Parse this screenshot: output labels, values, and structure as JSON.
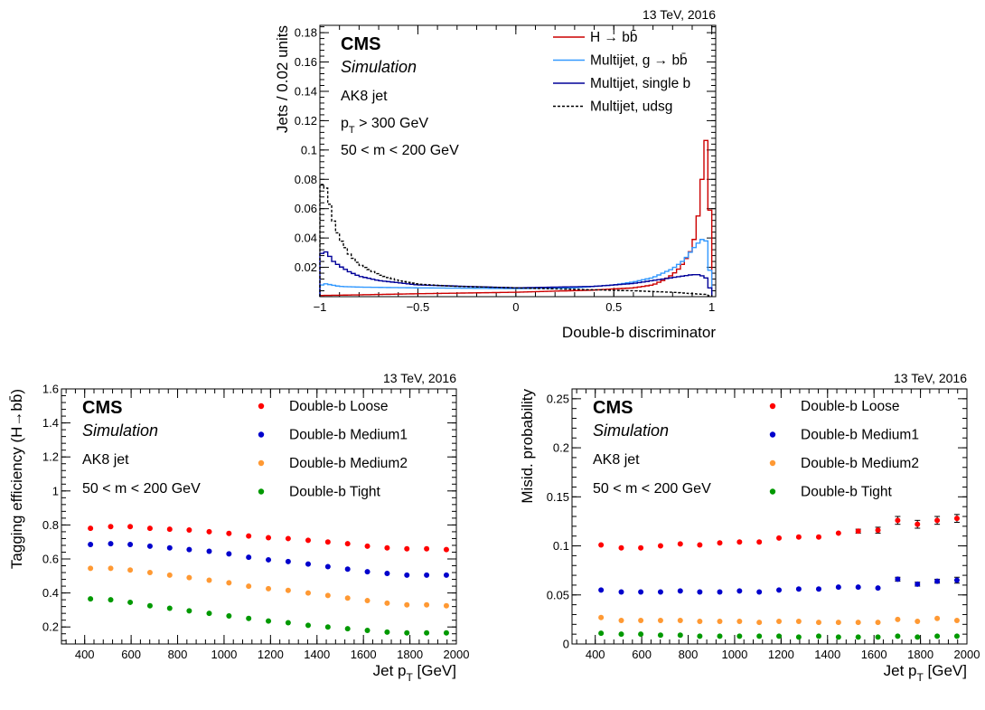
{
  "colors": {
    "red": "#cc0000",
    "lightblue": "#3399ff",
    "navy": "#000099",
    "black": "#000000",
    "marker_red": "#ff0000",
    "marker_blue": "#0000cc",
    "marker_orange": "#ff9933",
    "marker_green": "#009900"
  },
  "chart_data": [
    {
      "type": "line",
      "energy_label": "13 TeV, 2016",
      "experiment": "CMS",
      "simulation": "Simulation",
      "info_lines": [
        "AK8 jet",
        "p_T > 300 GeV",
        "50 < m < 200 GeV"
      ],
      "xlabel": "Double-b discriminator",
      "ylabel": "Jets / 0.02 units",
      "xlim": [
        -1,
        1.02
      ],
      "ylim": [
        0,
        0.185
      ],
      "xticks": [
        "−1",
        "−0.5",
        "0",
        "0.5",
        "1"
      ],
      "xtick_values": [
        -1,
        -0.5,
        0,
        0.5,
        1
      ],
      "yticks": [
        "0.02",
        "0.04",
        "0.06",
        "0.08",
        "0.1",
        "0.12",
        "0.14",
        "0.16",
        "0.18"
      ],
      "ytick_values": [
        0.02,
        0.04,
        0.06,
        0.08,
        0.1,
        0.12,
        0.14,
        0.16,
        0.18
      ],
      "legend_placement": "top-right",
      "bin_width": 0.02,
      "series": [
        {
          "name": "H → bb̄",
          "color": "red",
          "style": "solid",
          "anchors": [
            [
              -1.0,
              0.0008
            ],
            [
              -0.9,
              0.001
            ],
            [
              -0.5,
              0.002
            ],
            [
              0.0,
              0.003
            ],
            [
              0.4,
              0.0045
            ],
            [
              0.6,
              0.006
            ],
            [
              0.7,
              0.008
            ],
            [
              0.75,
              0.011
            ],
            [
              0.8,
              0.015
            ],
            [
              0.84,
              0.02
            ],
            [
              0.87,
              0.026
            ],
            [
              0.9,
              0.033
            ],
            [
              0.92,
              0.045
            ],
            [
              0.94,
              0.065
            ],
            [
              0.96,
              0.095
            ],
            [
              0.98,
              0.118
            ],
            [
              1.0,
              0.0
            ]
          ]
        },
        {
          "name": "Multijet, g → bb̄",
          "color": "lightblue",
          "style": "solid",
          "anchors": [
            [
              -1.0,
              0.007
            ],
            [
              -0.98,
              0.009
            ],
            [
              -0.94,
              0.008
            ],
            [
              -0.9,
              0.007
            ],
            [
              -0.8,
              0.0065
            ],
            [
              -0.5,
              0.006
            ],
            [
              0.0,
              0.0055
            ],
            [
              0.3,
              0.006
            ],
            [
              0.5,
              0.008
            ],
            [
              0.6,
              0.01
            ],
            [
              0.7,
              0.013
            ],
            [
              0.8,
              0.019
            ],
            [
              0.86,
              0.025
            ],
            [
              0.9,
              0.032
            ],
            [
              0.94,
              0.038
            ],
            [
              0.96,
              0.04
            ],
            [
              0.98,
              0.036
            ],
            [
              1.0,
              0.0
            ]
          ]
        },
        {
          "name": "Multijet, single b",
          "color": "navy",
          "style": "solid",
          "anchors": [
            [
              -1.0,
              0.028
            ],
            [
              -0.98,
              0.031
            ],
            [
              -0.96,
              0.03
            ],
            [
              -0.94,
              0.025
            ],
            [
              -0.9,
              0.021
            ],
            [
              -0.85,
              0.017
            ],
            [
              -0.8,
              0.014
            ],
            [
              -0.7,
              0.011
            ],
            [
              -0.5,
              0.008
            ],
            [
              0.0,
              0.006
            ],
            [
              0.4,
              0.007
            ],
            [
              0.6,
              0.009
            ],
            [
              0.7,
              0.011
            ],
            [
              0.8,
              0.013
            ],
            [
              0.9,
              0.015
            ],
            [
              0.94,
              0.015
            ],
            [
              0.98,
              0.012
            ],
            [
              1.0,
              0.0
            ]
          ]
        },
        {
          "name": "Multijet, udsg",
          "color": "black",
          "style": "dashed",
          "anchors": [
            [
              -1.0,
              0.075
            ],
            [
              -0.98,
              0.078
            ],
            [
              -0.96,
              0.07
            ],
            [
              -0.94,
              0.056
            ],
            [
              -0.92,
              0.047
            ],
            [
              -0.9,
              0.04
            ],
            [
              -0.85,
              0.029
            ],
            [
              -0.8,
              0.022
            ],
            [
              -0.7,
              0.015
            ],
            [
              -0.6,
              0.011
            ],
            [
              -0.5,
              0.0085
            ],
            [
              -0.3,
              0.007
            ],
            [
              0.0,
              0.006
            ],
            [
              0.3,
              0.005
            ],
            [
              0.6,
              0.004
            ],
            [
              0.8,
              0.003
            ],
            [
              0.9,
              0.002
            ],
            [
              0.98,
              0.0015
            ],
            [
              1.0,
              0.0
            ]
          ]
        }
      ]
    },
    {
      "type": "scatter",
      "energy_label": "13 TeV, 2016",
      "experiment": "CMS",
      "simulation": "Simulation",
      "info_lines": [
        "AK8 jet",
        "50 < m < 200 GeV"
      ],
      "xlabel": "Jet p_T [GeV]",
      "ylabel": "Tagging efficiency (H→bb̄)",
      "xlim": [
        300,
        2000
      ],
      "ylim": [
        0.1,
        1.6
      ],
      "xticks": [
        "400",
        "600",
        "800",
        "1000",
        "1200",
        "1400",
        "1600",
        "1800",
        "2000"
      ],
      "xtick_values": [
        400,
        600,
        800,
        1000,
        1200,
        1400,
        1600,
        1800,
        2000
      ],
      "yticks": [
        "0.2",
        "0.4",
        "0.6",
        "0.8",
        "1",
        "1.2",
        "1.4",
        "1.6"
      ],
      "ytick_values": [
        0.2,
        0.4,
        0.6,
        0.8,
        1.0,
        1.2,
        1.4,
        1.6
      ],
      "legend_placement": "top-right",
      "x": [
        425,
        512,
        596,
        681,
        766,
        850,
        936,
        1021,
        1106,
        1191,
        1276,
        1362,
        1447,
        1532,
        1617,
        1702,
        1787,
        1872,
        1957
      ],
      "series": [
        {
          "name": "Double-b Loose",
          "color": "marker_red",
          "values": [
            0.78,
            0.79,
            0.79,
            0.78,
            0.775,
            0.77,
            0.76,
            0.75,
            0.735,
            0.725,
            0.72,
            0.71,
            0.7,
            0.69,
            0.675,
            0.665,
            0.66,
            0.66,
            0.655
          ]
        },
        {
          "name": "Double-b Medium1",
          "color": "marker_blue",
          "values": [
            0.685,
            0.69,
            0.685,
            0.675,
            0.665,
            0.655,
            0.645,
            0.63,
            0.61,
            0.595,
            0.585,
            0.57,
            0.555,
            0.54,
            0.525,
            0.515,
            0.505,
            0.505,
            0.505
          ]
        },
        {
          "name": "Double-b Medium2",
          "color": "marker_orange",
          "values": [
            0.545,
            0.545,
            0.535,
            0.52,
            0.505,
            0.49,
            0.475,
            0.46,
            0.44,
            0.425,
            0.415,
            0.4,
            0.385,
            0.37,
            0.355,
            0.34,
            0.33,
            0.33,
            0.325
          ]
        },
        {
          "name": "Double-b Tight",
          "color": "marker_green",
          "values": [
            0.365,
            0.36,
            0.345,
            0.325,
            0.31,
            0.295,
            0.28,
            0.265,
            0.25,
            0.235,
            0.225,
            0.21,
            0.2,
            0.19,
            0.18,
            0.17,
            0.165,
            0.165,
            0.165
          ]
        }
      ]
    },
    {
      "type": "scatter",
      "energy_label": "13 TeV, 2016",
      "experiment": "CMS",
      "simulation": "Simulation",
      "info_lines": [
        "AK8 jet",
        "50 < m < 200 GeV"
      ],
      "xlabel": "Jet p_T [GeV]",
      "ylabel": "Misid. probability",
      "xlim": [
        300,
        2000
      ],
      "ylim": [
        0,
        0.26
      ],
      "xticks": [
        "400",
        "600",
        "800",
        "1000",
        "1200",
        "1400",
        "1600",
        "1800",
        "2000"
      ],
      "xtick_values": [
        400,
        600,
        800,
        1000,
        1200,
        1400,
        1600,
        1800,
        2000
      ],
      "yticks": [
        "0",
        "0.05",
        "0.1",
        "0.15",
        "0.2",
        "0.25"
      ],
      "ytick_values": [
        0,
        0.05,
        0.1,
        0.15,
        0.2,
        0.25
      ],
      "legend_placement": "top-right",
      "x": [
        425,
        512,
        596,
        681,
        766,
        850,
        936,
        1021,
        1106,
        1191,
        1276,
        1362,
        1447,
        1532,
        1617,
        1702,
        1787,
        1872,
        1957
      ],
      "series": [
        {
          "name": "Double-b Loose",
          "color": "marker_red",
          "values": [
            0.101,
            0.098,
            0.098,
            0.1,
            0.102,
            0.101,
            0.103,
            0.104,
            0.104,
            0.108,
            0.109,
            0.109,
            0.113,
            0.115,
            0.116,
            0.126,
            0.122,
            0.126,
            0.128
          ],
          "errors": [
            0.001,
            0.001,
            0.001,
            0.001,
            0.001,
            0.001,
            0.001,
            0.001,
            0.001,
            0.001,
            0.001,
            0.001,
            0.0015,
            0.002,
            0.003,
            0.004,
            0.004,
            0.004,
            0.004
          ]
        },
        {
          "name": "Double-b Medium1",
          "color": "marker_blue",
          "values": [
            0.055,
            0.053,
            0.053,
            0.053,
            0.054,
            0.053,
            0.053,
            0.054,
            0.053,
            0.055,
            0.056,
            0.056,
            0.058,
            0.058,
            0.057,
            0.066,
            0.061,
            0.064,
            0.065
          ],
          "errors": [
            0.001,
            0.001,
            0.001,
            0.001,
            0.001,
            0.001,
            0.001,
            0.001,
            0.001,
            0.001,
            0.001,
            0.001,
            0.001,
            0.001,
            0.0015,
            0.002,
            0.002,
            0.002,
            0.003
          ]
        },
        {
          "name": "Double-b Medium2",
          "color": "marker_orange",
          "values": [
            0.027,
            0.024,
            0.024,
            0.024,
            0.024,
            0.023,
            0.023,
            0.023,
            0.022,
            0.023,
            0.023,
            0.022,
            0.022,
            0.022,
            0.022,
            0.025,
            0.023,
            0.026,
            0.024
          ],
          "errors": [
            0,
            0,
            0,
            0,
            0,
            0,
            0,
            0,
            0,
            0,
            0,
            0,
            0,
            0,
            0,
            0,
            0,
            0,
            0
          ]
        },
        {
          "name": "Double-b Tight",
          "color": "marker_green",
          "values": [
            0.011,
            0.01,
            0.01,
            0.009,
            0.009,
            0.008,
            0.008,
            0.008,
            0.008,
            0.008,
            0.007,
            0.008,
            0.007,
            0.007,
            0.007,
            0.008,
            0.007,
            0.008,
            0.008
          ],
          "errors": [
            0,
            0,
            0,
            0,
            0,
            0,
            0,
            0,
            0,
            0,
            0,
            0,
            0,
            0,
            0,
            0,
            0,
            0,
            0
          ]
        }
      ]
    }
  ]
}
